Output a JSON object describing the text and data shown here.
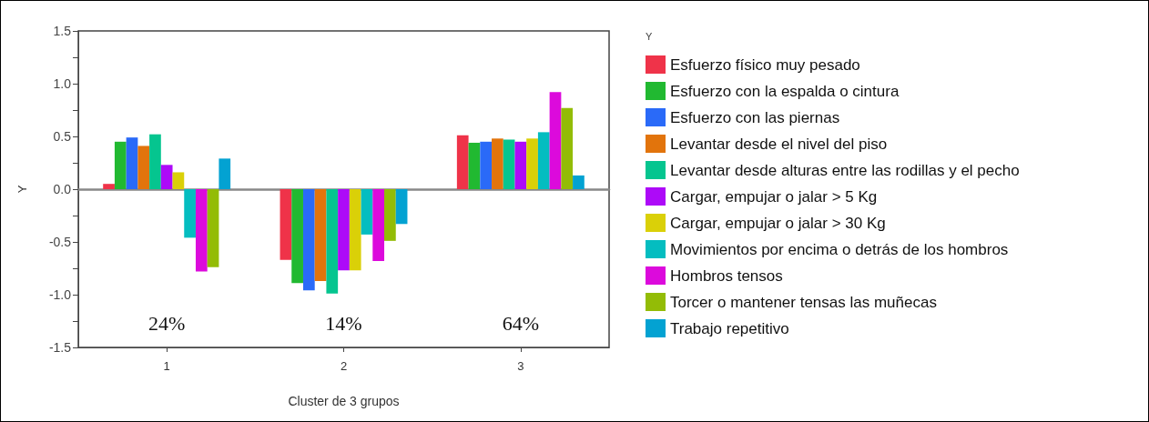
{
  "chart_data": {
    "type": "bar",
    "xlabel": "Cluster de 3 grupos",
    "ylabel": "Y",
    "legend_title": "Y",
    "legend": "right",
    "categories": [
      "1",
      "2",
      "3"
    ],
    "series": [
      {
        "name": "Esfuerzo físico muy pesado",
        "color": "#ef3349",
        "values": [
          0.05,
          -0.67,
          0.51
        ]
      },
      {
        "name": "Esfuerzo con la espalda o cintura",
        "color": "#21b931",
        "values": [
          0.45,
          -0.89,
          0.44
        ]
      },
      {
        "name": "Esfuerzo con las piernas",
        "color": "#2a6af8",
        "values": [
          0.49,
          -0.96,
          0.45
        ]
      },
      {
        "name": "Levantar desde el nivel del piso",
        "color": "#e2740c",
        "values": [
          0.41,
          -0.87,
          0.48
        ]
      },
      {
        "name": "Levantar desde alturas entre las rodillas y el pecho",
        "color": "#05c58f",
        "values": [
          0.52,
          -0.99,
          0.47
        ]
      },
      {
        "name": "Cargar, empujar o jalar > 5 Kg",
        "color": "#ad0af8",
        "values": [
          0.23,
          -0.77,
          0.45
        ]
      },
      {
        "name": "Cargar, empujar o jalar > 30 Kg",
        "color": "#dad008",
        "values": [
          0.16,
          -0.77,
          0.48
        ]
      },
      {
        "name": "Movimientos por encima o detrás de los hombros",
        "color": "#04bdc0",
        "values": [
          -0.46,
          -0.43,
          0.54
        ]
      },
      {
        "name": "Hombros tensos",
        "color": "#dc0adc",
        "values": [
          -0.78,
          -0.68,
          0.92
        ]
      },
      {
        "name": "Torcer o mantener tensas las muñecas",
        "color": "#93bc06",
        "values": [
          -0.74,
          -0.49,
          0.77
        ]
      },
      {
        "name": "Trabajo repetitivo",
        "color": "#03a2d2",
        "values": [
          0.29,
          -0.33,
          0.13
        ]
      }
    ],
    "ylim": [
      -1.5,
      1.5
    ],
    "yticks": [
      -1.5,
      {
        "value": -1.25,
        "label": null
      },
      {
        "value": -1,
        "label": "-1.0"
      },
      {
        "value": -0.75,
        "label": null
      },
      -0.5,
      {
        "value": -0.25,
        "label": null
      },
      {
        "value": 0,
        "label": "0.0"
      },
      {
        "value": 0.25,
        "label": null
      },
      0.5,
      {
        "value": 0.75,
        "label": null
      },
      {
        "value": 1,
        "label": "1.0"
      },
      {
        "value": 1.25,
        "label": null
      },
      1.5
    ],
    "annotations": [
      "24%",
      "14%",
      "64%"
    ]
  }
}
